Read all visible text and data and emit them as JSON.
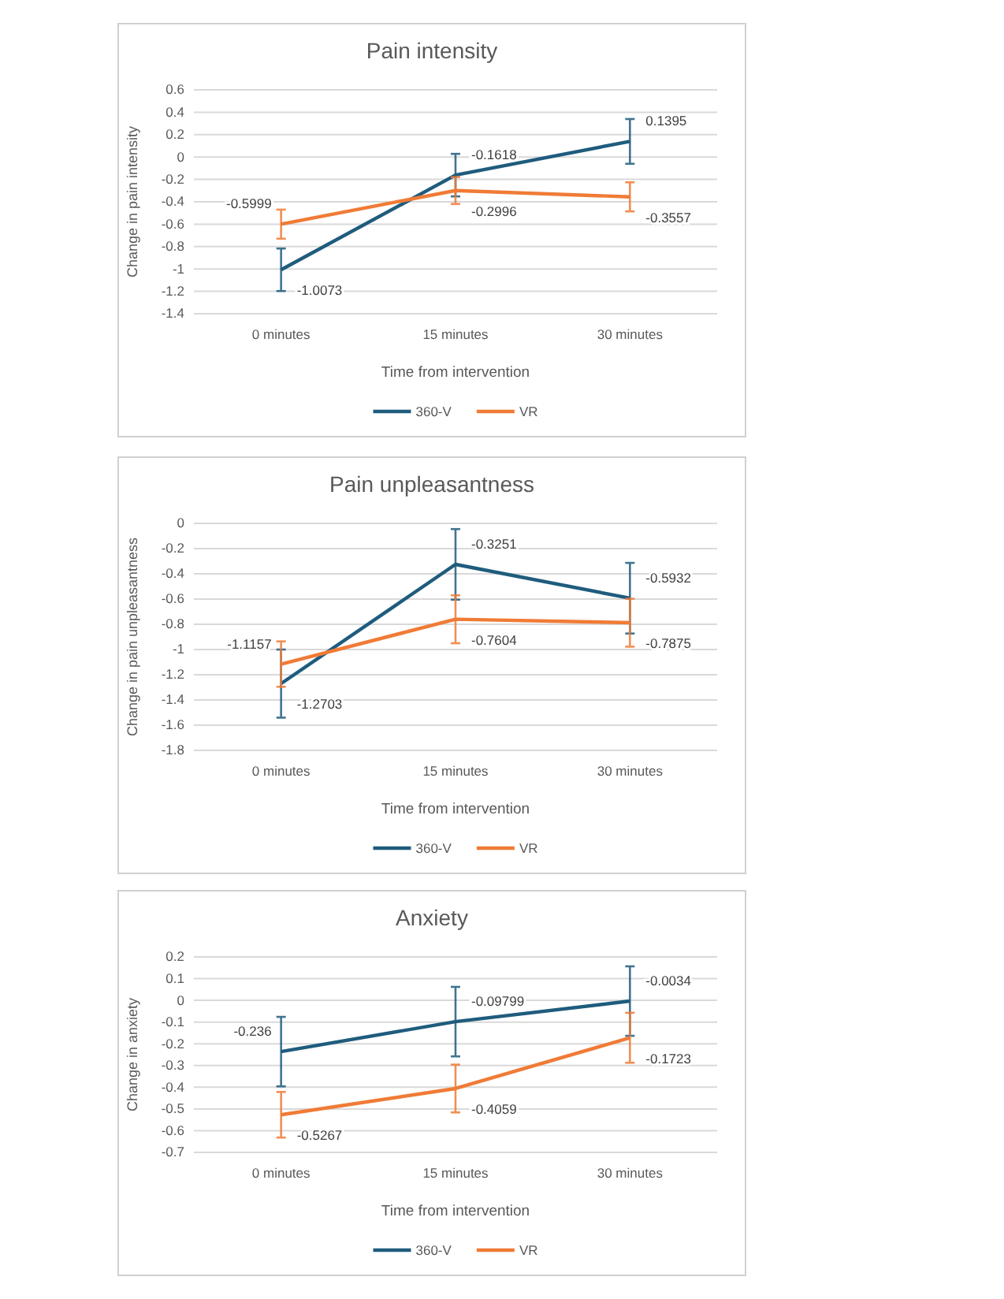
{
  "chart_data": [
    {
      "type": "line",
      "title": "Pain intensity",
      "xlabel": "Time from intervention",
      "ylabel": "Change in pain intensity",
      "categories": [
        "0 minutes",
        "15 minutes",
        "30 minutes"
      ],
      "ylim": [
        -1.4,
        0.6
      ],
      "yticks": [
        -1.4,
        -1.2,
        -1,
        -0.8,
        -0.6,
        -0.4,
        -0.2,
        0,
        0.2,
        0.4,
        0.6
      ],
      "grid": "y",
      "legend": "bottom",
      "marker": "none",
      "data_labels": true,
      "series": [
        {
          "name": "360-V",
          "color": "#1f5c7d",
          "values": [
            -1.0073,
            -0.1618,
            0.1395
          ],
          "errors": [
            0.19,
            0.19,
            0.2
          ]
        },
        {
          "name": "VR",
          "color": "#f07b36",
          "values": [
            -0.5999,
            -0.2996,
            -0.3557
          ],
          "errors": [
            0.13,
            0.12,
            0.13
          ]
        }
      ]
    },
    {
      "type": "line",
      "title": "Pain unpleasantness",
      "xlabel": "Time from intervention",
      "ylabel": "Change in pain unpleasantness",
      "categories": [
        "0 minutes",
        "15 minutes",
        "30 minutes"
      ],
      "ylim": [
        -1.8,
        0
      ],
      "yticks": [
        -1.8,
        -1.6,
        -1.4,
        -1.2,
        -1,
        -0.8,
        -0.6,
        -0.4,
        -0.2,
        0
      ],
      "grid": "y",
      "legend": "bottom",
      "marker": "none",
      "data_labels": true,
      "series": [
        {
          "name": "360-V",
          "color": "#1f5c7d",
          "values": [
            -1.2703,
            -0.3251,
            -0.5932
          ],
          "errors": [
            0.27,
            0.28,
            0.28
          ]
        },
        {
          "name": "VR",
          "color": "#f07b36",
          "values": [
            -1.1157,
            -0.7604,
            -0.7875
          ],
          "errors": [
            0.18,
            0.19,
            0.19
          ]
        }
      ]
    },
    {
      "type": "line",
      "title": "Anxiety",
      "xlabel": "Time from intervention",
      "ylabel": "Change in anxiety",
      "categories": [
        "0 minutes",
        "15 minutes",
        "30 minutes"
      ],
      "ylim": [
        -0.7,
        0.2
      ],
      "yticks": [
        -0.7,
        -0.6,
        -0.5,
        -0.4,
        -0.3,
        -0.2,
        -0.1,
        0,
        0.1,
        0.2
      ],
      "grid": "y",
      "legend": "bottom",
      "marker": "none",
      "data_labels": true,
      "series": [
        {
          "name": "360-V",
          "color": "#1f5c7d",
          "values": [
            -0.236,
            -0.09799,
            -0.0034
          ],
          "errors": [
            0.16,
            0.16,
            0.16
          ]
        },
        {
          "name": "VR",
          "color": "#f07b36",
          "values": [
            -0.5267,
            -0.4059,
            -0.1723
          ],
          "errors": [
            0.105,
            0.11,
            0.115
          ]
        }
      ]
    }
  ]
}
